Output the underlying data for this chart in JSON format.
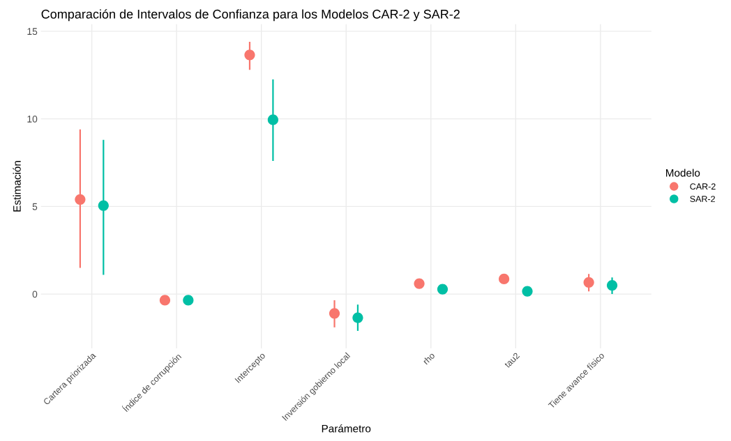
{
  "chart_data": {
    "type": "scatter",
    "title": "Comparación de Intervalos de Confianza para los Modelos CAR-2 y SAR-2",
    "xlabel": "Parámetro",
    "ylabel": "Estimación",
    "legend_title": "Modelo",
    "categories": [
      "Cartera priorizada",
      "Índice de corrupción",
      "Intercepto",
      "Inversión gobierno local",
      "rho",
      "tau2",
      "Tiene avance físico"
    ],
    "series": [
      {
        "name": "CAR-2",
        "color": "#f8766d",
        "values": [
          5.4,
          -0.35,
          13.65,
          -1.1,
          0.6,
          0.86,
          0.67
        ],
        "errors": [
          [
            1.5,
            9.4
          ],
          null,
          [
            12.8,
            14.4
          ],
          [
            -1.9,
            -0.35
          ],
          null,
          null,
          [
            0.15,
            1.15
          ]
        ]
      },
      {
        "name": "SAR-2",
        "color": "#00bfa5",
        "values": [
          5.05,
          -0.35,
          9.95,
          -1.35,
          0.28,
          0.16,
          0.5
        ],
        "errors": [
          [
            1.1,
            8.8
          ],
          null,
          [
            7.6,
            12.25
          ],
          [
            -2.1,
            -0.6
          ],
          null,
          null,
          [
            0.0,
            0.95
          ]
        ]
      }
    ],
    "ylim": [
      -3.1,
      15.4
    ],
    "yticks": [
      0,
      5,
      10,
      15
    ],
    "grid": true,
    "legend": "right",
    "marker": "circle"
  }
}
